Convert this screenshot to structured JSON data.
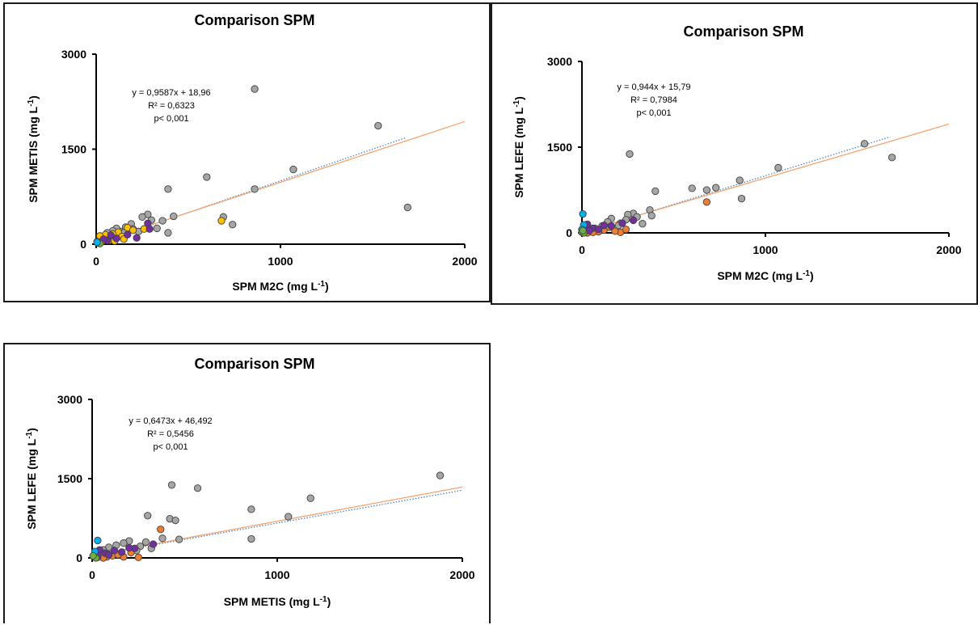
{
  "chart_data": [
    {
      "type": "scatter",
      "title": "Comparison SPM",
      "xlabel": "SPM M2C (mg L",
      "xlabel_sup": "-1",
      "xlabel_tail": ")",
      "ylabel": "SPM METIS (mg L",
      "ylabel_sup": "-1",
      "ylabel_tail": ")",
      "xlim": [
        0,
        2000
      ],
      "ylim": [
        0,
        3000
      ],
      "xticks": [
        "0",
        "1000",
        "2000"
      ],
      "yticks": [
        "0",
        "1500",
        "3000"
      ],
      "annotations": [
        "y = 0,9587x + 18,96",
        "R² = 0,6323",
        "p< 0,001"
      ],
      "trendline": {
        "slope": 0.9587,
        "intercept": 18.96,
        "color": "#f4a46e"
      },
      "identity_line": {
        "x_end": 1680,
        "color": "#4f81bd"
      },
      "series": [
        {
          "color": "#a6a6a6",
          "points": [
            [
              860,
              2450
            ],
            [
              1530,
              1870
            ],
            [
              1070,
              1180
            ],
            [
              600,
              1060
            ],
            [
              390,
              870
            ],
            [
              860,
              870
            ],
            [
              1690,
              580
            ],
            [
              690,
              430
            ],
            [
              740,
              310
            ],
            [
              420,
              440
            ],
            [
              390,
              180
            ],
            [
              360,
              370
            ],
            [
              330,
              250
            ],
            [
              280,
              470
            ],
            [
              250,
              430
            ],
            [
              190,
              320
            ],
            [
              160,
              270
            ],
            [
              130,
              200
            ],
            [
              110,
              250
            ],
            [
              80,
              160
            ],
            [
              60,
              120
            ],
            [
              40,
              100
            ],
            [
              20,
              60
            ],
            [
              200,
              240
            ],
            [
              300,
              380
            ],
            [
              150,
              180
            ],
            [
              90,
              210
            ],
            [
              60,
              180
            ],
            [
              230,
              200
            ]
          ]
        },
        {
          "color": "#ffc000",
          "points": [
            [
              680,
              370
            ],
            [
              170,
              260
            ],
            [
              120,
              190
            ],
            [
              140,
              120
            ],
            [
              90,
              160
            ],
            [
              60,
              100
            ],
            [
              70,
              60
            ],
            [
              200,
              220
            ],
            [
              30,
              40
            ],
            [
              150,
              80
            ],
            [
              50,
              150
            ],
            [
              100,
              50
            ],
            [
              260,
              240
            ],
            [
              20,
              130
            ]
          ]
        },
        {
          "color": "#7030a0",
          "points": [
            [
              280,
              330
            ],
            [
              220,
              100
            ],
            [
              110,
              90
            ],
            [
              60,
              60
            ],
            [
              290,
              240
            ],
            [
              170,
              150
            ],
            [
              80,
              140
            ],
            [
              40,
              80
            ]
          ]
        },
        {
          "color": "#70ad47",
          "points": [
            [
              10,
              20
            ],
            [
              20,
              10
            ],
            [
              5,
              40
            ]
          ]
        },
        {
          "color": "#00b0f0",
          "points": [
            [
              5,
              30
            ]
          ]
        }
      ]
    },
    {
      "type": "scatter",
      "title": "Comparison SPM",
      "xlabel": "SPM M2C (mg L",
      "xlabel_sup": "-1",
      "xlabel_tail": ")",
      "ylabel": "SPM LEFE (mg L",
      "ylabel_sup": "-1",
      "ylabel_tail": ")",
      "xlim": [
        0,
        2000
      ],
      "ylim": [
        0,
        3000
      ],
      "xticks": [
        "0",
        "1000",
        "2000"
      ],
      "yticks": [
        "0",
        "1500",
        "3000"
      ],
      "annotations": [
        "y = 0,944x + 15,79",
        "R² = 0,7984",
        "p< 0,001"
      ],
      "trendline": {
        "slope": 0.944,
        "intercept": 15.79,
        "color": "#f4a46e"
      },
      "identity_line": {
        "x_end": 1680,
        "color": "#4f81bd"
      },
      "series": [
        {
          "color": "#a6a6a6",
          "points": [
            [
              1540,
              1560
            ],
            [
              1690,
              1320
            ],
            [
              1070,
              1140
            ],
            [
              860,
              920
            ],
            [
              870,
              600
            ],
            [
              730,
              790
            ],
            [
              600,
              780
            ],
            [
              680,
              750
            ],
            [
              260,
              1380
            ],
            [
              400,
              730
            ],
            [
              370,
              400
            ],
            [
              380,
              300
            ],
            [
              330,
              160
            ],
            [
              280,
              340
            ],
            [
              250,
              320
            ],
            [
              240,
              230
            ],
            [
              210,
              170
            ],
            [
              160,
              250
            ],
            [
              140,
              190
            ],
            [
              110,
              120
            ],
            [
              70,
              80
            ],
            [
              40,
              60
            ],
            [
              20,
              30
            ],
            [
              200,
              130
            ],
            [
              300,
              280
            ]
          ]
        },
        {
          "color": "#ed7d31",
          "points": [
            [
              680,
              540
            ],
            [
              210,
              10
            ],
            [
              180,
              30
            ],
            [
              120,
              50
            ],
            [
              90,
              20
            ],
            [
              60,
              10
            ],
            [
              30,
              0
            ],
            [
              150,
              100
            ],
            [
              240,
              60
            ]
          ]
        },
        {
          "color": "#7030a0",
          "points": [
            [
              280,
              220
            ],
            [
              220,
              170
            ],
            [
              120,
              130
            ],
            [
              60,
              80
            ],
            [
              30,
              150
            ],
            [
              90,
              60
            ],
            [
              160,
              120
            ],
            [
              40,
              40
            ]
          ]
        },
        {
          "color": "#00b0f0",
          "points": [
            [
              5,
              330
            ],
            [
              10,
              140
            ],
            [
              0,
              60
            ]
          ]
        },
        {
          "color": "#70ad47",
          "points": [
            [
              0,
              10
            ],
            [
              10,
              0
            ],
            [
              5,
              40
            ]
          ]
        }
      ]
    },
    {
      "type": "scatter",
      "title": "Comparison SPM",
      "xlabel": "SPM METIS (mg L",
      "xlabel_sup": "-1",
      "xlabel_tail": ")",
      "ylabel": "SPM LEFE (mg L",
      "ylabel_sup": "-1",
      "ylabel_tail": ")",
      "xlim": [
        0,
        2000
      ],
      "ylim": [
        0,
        3000
      ],
      "xticks": [
        "0",
        "1000",
        "2000"
      ],
      "yticks": [
        "0",
        "1500",
        "3000"
      ],
      "annotations": [
        "y = 0,6473x + 46,492",
        "R² = 0,5456",
        "p< 0,001"
      ],
      "trendline": {
        "slope": 0.6473,
        "intercept": 46.492,
        "color": "#f4a46e"
      },
      "identity_line": {
        "x_end": 2000,
        "slope": 0.62,
        "intercept": 40,
        "color": "#4f81bd"
      },
      "series": [
        {
          "color": "#a6a6a6",
          "points": [
            [
              1880,
              1560
            ],
            [
              1180,
              1130
            ],
            [
              860,
              920
            ],
            [
              1060,
              780
            ],
            [
              860,
              360
            ],
            [
              430,
              1380
            ],
            [
              570,
              1320
            ],
            [
              300,
              800
            ],
            [
              420,
              740
            ],
            [
              450,
              710
            ],
            [
              470,
              350
            ],
            [
              380,
              370
            ],
            [
              290,
              300
            ],
            [
              260,
              220
            ],
            [
              200,
              320
            ],
            [
              170,
              280
            ],
            [
              130,
              240
            ],
            [
              90,
              200
            ],
            [
              60,
              150
            ],
            [
              40,
              110
            ],
            [
              20,
              60
            ],
            [
              240,
              140
            ],
            [
              320,
              180
            ]
          ]
        },
        {
          "color": "#ed7d31",
          "points": [
            [
              370,
              540
            ],
            [
              250,
              10
            ],
            [
              170,
              20
            ],
            [
              110,
              40
            ],
            [
              140,
              60
            ],
            [
              80,
              20
            ],
            [
              60,
              0
            ],
            [
              210,
              100
            ],
            [
              30,
              10
            ]
          ]
        },
        {
          "color": "#7030a0",
          "points": [
            [
              330,
              260
            ],
            [
              230,
              180
            ],
            [
              120,
              140
            ],
            [
              70,
              90
            ],
            [
              40,
              150
            ],
            [
              90,
              60
            ],
            [
              160,
              110
            ],
            [
              30,
              40
            ],
            [
              200,
              190
            ]
          ]
        },
        {
          "color": "#00b0f0",
          "points": [
            [
              30,
              330
            ],
            [
              15,
              120
            ]
          ]
        },
        {
          "color": "#70ad47",
          "points": [
            [
              10,
              20
            ],
            [
              20,
              0
            ],
            [
              5,
              40
            ]
          ]
        }
      ]
    }
  ]
}
